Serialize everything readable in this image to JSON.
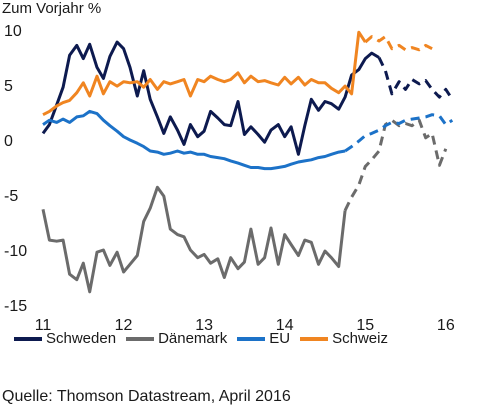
{
  "chart_data": {
    "type": "line",
    "ylabel": "Zum Vorjahr %",
    "ylim": [
      -15,
      10
    ],
    "yticks": [
      10,
      5,
      0,
      -5,
      -10,
      -15
    ],
    "xlim": [
      2011,
      2016.3
    ],
    "xticks": [
      {
        "value": 2011,
        "label": "11"
      },
      {
        "value": 2012,
        "label": "12"
      },
      {
        "value": 2013,
        "label": "13"
      },
      {
        "value": 2014,
        "label": "14"
      },
      {
        "value": 2015,
        "label": "15"
      },
      {
        "value": 2016,
        "label": "16"
      }
    ],
    "grid": false,
    "legend_position": "bottom",
    "series": [
      {
        "name": "Schweden",
        "color": "#0d1a4f",
        "solid": [
          [
            2011.0,
            0.6
          ],
          [
            2011.08,
            1.4
          ],
          [
            2011.17,
            3.2
          ],
          [
            2011.25,
            4.8
          ],
          [
            2011.33,
            7.7
          ],
          [
            2011.42,
            8.6
          ],
          [
            2011.5,
            7.4
          ],
          [
            2011.58,
            8.7
          ],
          [
            2011.67,
            6.6
          ],
          [
            2011.75,
            5.6
          ],
          [
            2011.83,
            7.6
          ],
          [
            2011.92,
            8.9
          ],
          [
            2012.0,
            8.3
          ],
          [
            2012.08,
            6.6
          ],
          [
            2012.17,
            4.0
          ],
          [
            2012.25,
            6.3
          ],
          [
            2012.33,
            3.7
          ],
          [
            2012.42,
            2.1
          ],
          [
            2012.5,
            0.6
          ],
          [
            2012.58,
            2.1
          ],
          [
            2012.67,
            0.9
          ],
          [
            2012.75,
            -0.4
          ],
          [
            2012.83,
            1.4
          ],
          [
            2012.92,
            0.3
          ],
          [
            2013.0,
            0.8
          ],
          [
            2013.08,
            2.6
          ],
          [
            2013.17,
            2.0
          ],
          [
            2013.25,
            1.4
          ],
          [
            2013.33,
            1.3
          ],
          [
            2013.42,
            3.5
          ],
          [
            2013.5,
            0.5
          ],
          [
            2013.58,
            1.2
          ],
          [
            2013.67,
            0.5
          ],
          [
            2013.75,
            -0.2
          ],
          [
            2013.83,
            0.9
          ],
          [
            2013.92,
            1.4
          ],
          [
            2014.0,
            0.3
          ],
          [
            2014.08,
            1.2
          ],
          [
            2014.17,
            -1.3
          ],
          [
            2014.25,
            1.3
          ],
          [
            2014.33,
            3.7
          ],
          [
            2014.42,
            2.7
          ],
          [
            2014.5,
            3.5
          ],
          [
            2014.58,
            3.3
          ],
          [
            2014.67,
            2.8
          ],
          [
            2014.75,
            3.9
          ],
          [
            2014.83,
            5.9
          ],
          [
            2014.92,
            6.4
          ],
          [
            2015.0,
            7.4
          ],
          [
            2015.08,
            7.9
          ],
          [
            2015.17,
            7.5
          ]
        ],
        "dashed": [
          [
            2015.17,
            7.5
          ],
          [
            2015.25,
            6.3
          ],
          [
            2015.33,
            4.2
          ],
          [
            2015.42,
            5.3
          ],
          [
            2015.5,
            4.6
          ],
          [
            2015.58,
            5.5
          ],
          [
            2015.67,
            5.1
          ],
          [
            2015.75,
            5.4
          ],
          [
            2015.83,
            4.6
          ],
          [
            2015.92,
            3.9
          ],
          [
            2016.0,
            4.6
          ],
          [
            2016.08,
            3.7
          ]
        ]
      },
      {
        "name": "Dänemark",
        "color": "#6b6b6b",
        "solid": [
          [
            2011.0,
            -6.3
          ],
          [
            2011.08,
            -9.1
          ],
          [
            2011.17,
            -9.2
          ],
          [
            2011.25,
            -9.1
          ],
          [
            2011.33,
            -12.2
          ],
          [
            2011.42,
            -12.7
          ],
          [
            2011.5,
            -11.2
          ],
          [
            2011.58,
            -13.8
          ],
          [
            2011.67,
            -10.2
          ],
          [
            2011.75,
            -10.0
          ],
          [
            2011.83,
            -11.4
          ],
          [
            2011.92,
            -10.2
          ],
          [
            2012.0,
            -12.0
          ],
          [
            2012.08,
            -11.3
          ],
          [
            2012.17,
            -10.5
          ],
          [
            2012.25,
            -7.4
          ],
          [
            2012.33,
            -6.2
          ],
          [
            2012.42,
            -4.3
          ],
          [
            2012.5,
            -5.1
          ],
          [
            2012.58,
            -8.1
          ],
          [
            2012.67,
            -8.6
          ],
          [
            2012.75,
            -8.8
          ],
          [
            2012.83,
            -10.0
          ],
          [
            2012.92,
            -10.7
          ],
          [
            2013.0,
            -10.4
          ],
          [
            2013.08,
            -11.2
          ],
          [
            2013.17,
            -10.8
          ],
          [
            2013.25,
            -12.5
          ],
          [
            2013.33,
            -10.7
          ],
          [
            2013.42,
            -11.7
          ],
          [
            2013.5,
            -11.1
          ],
          [
            2013.58,
            -8.1
          ],
          [
            2013.67,
            -11.3
          ],
          [
            2013.75,
            -10.7
          ],
          [
            2013.83,
            -8.0
          ],
          [
            2013.92,
            -11.3
          ],
          [
            2014.0,
            -8.6
          ],
          [
            2014.08,
            -9.5
          ],
          [
            2014.17,
            -10.5
          ],
          [
            2014.25,
            -9.1
          ],
          [
            2014.33,
            -9.3
          ],
          [
            2014.42,
            -11.3
          ],
          [
            2014.5,
            -10.1
          ],
          [
            2014.58,
            -10.7
          ],
          [
            2014.67,
            -11.5
          ],
          [
            2014.75,
            -6.4
          ]
        ],
        "dashed": [
          [
            2014.75,
            -6.4
          ],
          [
            2014.83,
            -5.2
          ],
          [
            2014.92,
            -4.1
          ],
          [
            2015.0,
            -2.4
          ],
          [
            2015.08,
            -1.8
          ],
          [
            2015.17,
            -1.0
          ],
          [
            2015.25,
            1.4
          ],
          [
            2015.33,
            1.8
          ],
          [
            2015.42,
            1.3
          ],
          [
            2015.5,
            1.5
          ],
          [
            2015.58,
            1.3
          ],
          [
            2015.67,
            1.8
          ],
          [
            2015.75,
            0.2
          ],
          [
            2015.83,
            0.6
          ],
          [
            2015.92,
            -2.3
          ],
          [
            2016.0,
            -0.8
          ]
        ]
      },
      {
        "name": "EU",
        "color": "#1c72c8",
        "solid": [
          [
            2011.0,
            1.4
          ],
          [
            2011.08,
            1.8
          ],
          [
            2011.17,
            1.6
          ],
          [
            2011.25,
            1.9
          ],
          [
            2011.33,
            1.6
          ],
          [
            2011.42,
            2.1
          ],
          [
            2011.5,
            2.2
          ],
          [
            2011.58,
            2.6
          ],
          [
            2011.67,
            2.4
          ],
          [
            2011.75,
            1.8
          ],
          [
            2011.83,
            1.3
          ],
          [
            2011.92,
            0.8
          ],
          [
            2012.0,
            0.3
          ],
          [
            2012.08,
            0.0
          ],
          [
            2012.17,
            -0.3
          ],
          [
            2012.25,
            -0.6
          ],
          [
            2012.33,
            -1.0
          ],
          [
            2012.42,
            -1.1
          ],
          [
            2012.5,
            -1.3
          ],
          [
            2012.58,
            -1.2
          ],
          [
            2012.67,
            -1.0
          ],
          [
            2012.75,
            -1.2
          ],
          [
            2012.83,
            -1.1
          ],
          [
            2012.92,
            -1.3
          ],
          [
            2013.0,
            -1.3
          ],
          [
            2013.08,
            -1.5
          ],
          [
            2013.17,
            -1.6
          ],
          [
            2013.25,
            -1.7
          ],
          [
            2013.33,
            -1.9
          ],
          [
            2013.42,
            -2.1
          ],
          [
            2013.5,
            -2.3
          ],
          [
            2013.58,
            -2.5
          ],
          [
            2013.67,
            -2.5
          ],
          [
            2013.75,
            -2.6
          ],
          [
            2013.83,
            -2.6
          ],
          [
            2013.92,
            -2.5
          ],
          [
            2014.0,
            -2.4
          ],
          [
            2014.08,
            -2.2
          ],
          [
            2014.17,
            -2.0
          ],
          [
            2014.25,
            -1.9
          ],
          [
            2014.33,
            -1.8
          ],
          [
            2014.42,
            -1.6
          ],
          [
            2014.5,
            -1.5
          ],
          [
            2014.58,
            -1.3
          ],
          [
            2014.67,
            -1.1
          ],
          [
            2014.75,
            -1.0
          ]
        ],
        "dashed": [
          [
            2014.75,
            -1.0
          ],
          [
            2014.83,
            -0.6
          ],
          [
            2014.92,
            -0.1
          ],
          [
            2015.0,
            0.4
          ],
          [
            2015.08,
            0.6
          ],
          [
            2015.17,
            0.9
          ],
          [
            2015.25,
            1.3
          ],
          [
            2015.33,
            1.6
          ],
          [
            2015.42,
            1.5
          ],
          [
            2015.5,
            1.8
          ],
          [
            2015.58,
            1.9
          ],
          [
            2015.67,
            2.0
          ],
          [
            2015.75,
            2.1
          ],
          [
            2015.83,
            2.3
          ],
          [
            2015.92,
            2.2
          ],
          [
            2016.0,
            1.4
          ],
          [
            2016.08,
            1.8
          ]
        ]
      },
      {
        "name": "Schweiz",
        "color": "#f08521",
        "solid": [
          [
            2011.0,
            2.3
          ],
          [
            2011.08,
            2.6
          ],
          [
            2011.17,
            3.1
          ],
          [
            2011.25,
            3.4
          ],
          [
            2011.33,
            3.6
          ],
          [
            2011.42,
            4.3
          ],
          [
            2011.5,
            5.2
          ],
          [
            2011.58,
            4.0
          ],
          [
            2011.67,
            5.8
          ],
          [
            2011.75,
            4.2
          ],
          [
            2011.83,
            5.3
          ],
          [
            2011.92,
            4.9
          ],
          [
            2012.0,
            5.3
          ],
          [
            2012.08,
            5.2
          ],
          [
            2012.17,
            5.3
          ],
          [
            2012.25,
            4.8
          ],
          [
            2012.33,
            5.5
          ],
          [
            2012.42,
            4.6
          ],
          [
            2012.5,
            5.3
          ],
          [
            2012.58,
            5.1
          ],
          [
            2012.67,
            5.3
          ],
          [
            2012.75,
            5.5
          ],
          [
            2012.83,
            4.0
          ],
          [
            2012.92,
            5.5
          ],
          [
            2013.0,
            5.3
          ],
          [
            2013.08,
            5.8
          ],
          [
            2013.17,
            5.5
          ],
          [
            2013.25,
            5.3
          ],
          [
            2013.33,
            5.5
          ],
          [
            2013.42,
            6.1
          ],
          [
            2013.5,
            5.2
          ],
          [
            2013.58,
            5.8
          ],
          [
            2013.67,
            5.3
          ],
          [
            2013.75,
            5.4
          ],
          [
            2013.83,
            5.2
          ],
          [
            2013.92,
            5.0
          ],
          [
            2014.0,
            5.7
          ],
          [
            2014.08,
            5.1
          ],
          [
            2014.17,
            5.7
          ],
          [
            2014.25,
            5.0
          ],
          [
            2014.33,
            5.5
          ],
          [
            2014.42,
            5.2
          ],
          [
            2014.5,
            5.2
          ],
          [
            2014.58,
            4.7
          ],
          [
            2014.67,
            4.3
          ],
          [
            2014.75,
            4.9
          ],
          [
            2014.83,
            4.2
          ],
          [
            2014.92,
            9.8
          ],
          [
            2015.0,
            8.9
          ]
        ],
        "dashed": [
          [
            2015.0,
            8.9
          ],
          [
            2015.08,
            9.4
          ],
          [
            2015.17,
            9.0
          ],
          [
            2015.25,
            9.4
          ],
          [
            2015.33,
            8.3
          ],
          [
            2015.42,
            8.6
          ],
          [
            2015.5,
            8.2
          ],
          [
            2015.58,
            8.4
          ],
          [
            2015.67,
            8.2
          ],
          [
            2015.75,
            8.6
          ],
          [
            2015.83,
            8.3
          ]
        ]
      }
    ]
  },
  "source": "Quelle: Thomson Datastream,  April 2016"
}
